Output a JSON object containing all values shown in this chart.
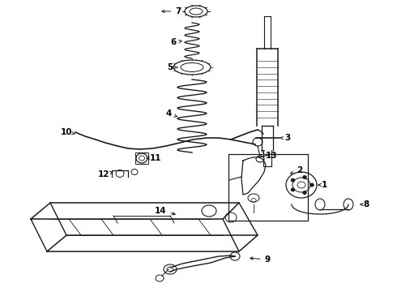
{
  "bg_color": "#ffffff",
  "line_color": "#1a1a1a",
  "label_color": "#000000",
  "label_fontsize": 7.5,
  "label_fontweight": "bold",
  "fig_width": 4.9,
  "fig_height": 3.6,
  "dpi": 100
}
